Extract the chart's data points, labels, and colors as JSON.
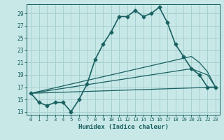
{
  "xlabel": "Humidex (Indice chaleur)",
  "background_color": "#c8e8e8",
  "grid_color": "#a8d0d0",
  "line_color": "#1a6060",
  "xlim": [
    -0.5,
    23.5
  ],
  "ylim": [
    12.5,
    30.5
  ],
  "yticks": [
    13,
    15,
    17,
    19,
    21,
    23,
    25,
    27,
    29
  ],
  "xticks": [
    0,
    1,
    2,
    3,
    4,
    5,
    6,
    7,
    8,
    9,
    10,
    11,
    12,
    13,
    14,
    15,
    16,
    17,
    18,
    19,
    20,
    21,
    22,
    23
  ],
  "series": [
    {
      "x": [
        0,
        1,
        2,
        3,
        4,
        5,
        6,
        7,
        8,
        9,
        10,
        11,
        12,
        13,
        14,
        15,
        16,
        17,
        18,
        19,
        20,
        21,
        22,
        23
      ],
      "y": [
        16,
        14.5,
        14,
        14.5,
        14.5,
        13,
        15,
        17.5,
        21.5,
        24,
        26,
        28.5,
        28.5,
        29.5,
        28.5,
        29,
        30,
        27.5,
        24,
        22,
        20,
        19,
        17,
        17
      ],
      "marker": "D",
      "markersize": 2.5,
      "linewidth": 1.2
    },
    {
      "x": [
        0,
        23
      ],
      "y": [
        16,
        17
      ],
      "linewidth": 0.9
    },
    {
      "x": [
        0,
        20,
        21,
        22,
        23
      ],
      "y": [
        16,
        20,
        19.5,
        19,
        17
      ],
      "linewidth": 0.9
    },
    {
      "x": [
        0,
        20,
        21,
        22,
        23
      ],
      "y": [
        16,
        22,
        21,
        19.5,
        17
      ],
      "linewidth": 0.9
    }
  ]
}
